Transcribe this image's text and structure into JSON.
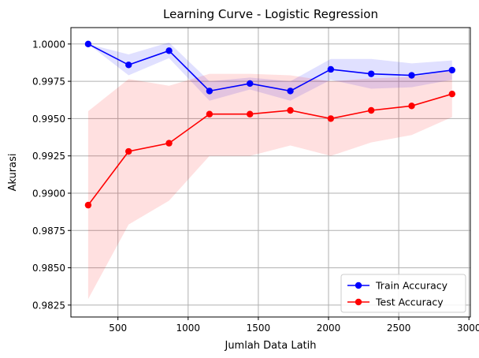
{
  "chart_data": {
    "type": "line",
    "title": "Learning Curve - Logistic Regression",
    "xlabel": "Jumlah Data Latih",
    "ylabel": "Akurasi",
    "xlim": [
      165,
      3010
    ],
    "ylim": [
      0.9817,
      1.0011
    ],
    "xticks": [
      500,
      1000,
      1500,
      2000,
      2500,
      3000
    ],
    "yticks": [
      0.9825,
      0.985,
      0.9875,
      0.99,
      0.9925,
      0.995,
      0.9975,
      1.0
    ],
    "xtick_labels": [
      "500",
      "1000",
      "1500",
      "2000",
      "2500",
      "3000"
    ],
    "ytick_labels": [
      "0.9825",
      "0.9850",
      "0.9875",
      "0.9900",
      "0.9925",
      "0.9950",
      "0.9975",
      "1.0000"
    ],
    "grid": true,
    "legend_position": "bottom-right",
    "x": [
      288,
      576,
      864,
      1152,
      1440,
      1728,
      2016,
      2304,
      2592,
      2880
    ],
    "series": [
      {
        "name": "Train Accuracy",
        "color": "#0000ff",
        "band_color": "#0000ff",
        "values": [
          1.0,
          0.9986,
          0.99955,
          0.99685,
          0.99735,
          0.99685,
          0.9983,
          0.998,
          0.9979,
          0.99825
        ],
        "lower": [
          1.0,
          0.9979,
          0.99905,
          0.9962,
          0.99695,
          0.9962,
          0.9976,
          0.997,
          0.9971,
          0.9976
        ],
        "upper": [
          1.0,
          0.9993,
          1.0001,
          0.9975,
          0.99775,
          0.9975,
          0.999,
          0.999,
          0.9987,
          0.9989
        ]
      },
      {
        "name": "Test Accuracy",
        "color": "#ff0000",
        "band_color": "#ff0000",
        "values": [
          0.9892,
          0.9928,
          0.99335,
          0.9953,
          0.9953,
          0.99555,
          0.995,
          0.99555,
          0.99585,
          0.99665
        ],
        "lower": [
          0.9829,
          0.9879,
          0.9895,
          0.9925,
          0.9925,
          0.9932,
          0.9925,
          0.9934,
          0.9939,
          0.9951
        ],
        "upper": [
          0.9955,
          0.99765,
          0.9972,
          0.998,
          0.998,
          0.9979,
          0.9975,
          0.9977,
          0.9978,
          0.9982
        ]
      }
    ]
  }
}
